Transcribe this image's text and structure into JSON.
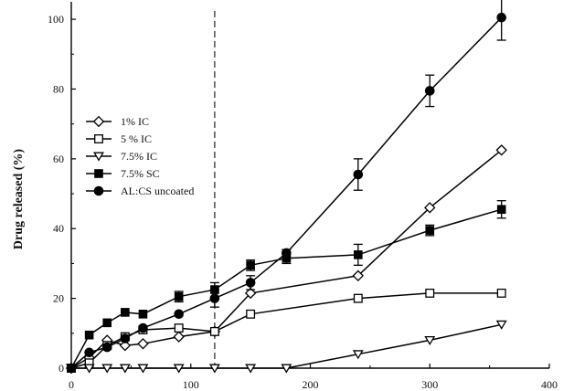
{
  "chart_data": {
    "type": "line",
    "title": "",
    "xlabel": "",
    "ylabel": "Drug released  (%)",
    "xlim": [
      0,
      400
    ],
    "ylim": [
      0,
      105
    ],
    "xticks": [
      0,
      100,
      200,
      300,
      400
    ],
    "yticks": [
      0,
      20,
      40,
      60,
      80,
      100
    ],
    "grid": false,
    "legend_position": "middle-left",
    "reference_line": {
      "x": 120,
      "style": "dashed"
    },
    "series": [
      {
        "name": "1% IC",
        "marker": "diamond-open",
        "x": [
          0,
          15,
          30,
          45,
          60,
          90,
          120,
          150,
          240,
          300,
          360
        ],
        "y": [
          0,
          3,
          8,
          6.5,
          7,
          9,
          10.5,
          21.5,
          26.5,
          46,
          62.5
        ]
      },
      {
        "name": "5 % IC",
        "marker": "square-open",
        "x": [
          0,
          15,
          30,
          45,
          60,
          90,
          120,
          150,
          240,
          300,
          360
        ],
        "y": [
          0,
          1.5,
          6.5,
          9,
          11,
          11.5,
          10.5,
          15.5,
          20,
          21.5,
          21.5
        ]
      },
      {
        "name": "7.5% IC",
        "marker": "triangle-down-open",
        "x": [
          0,
          15,
          30,
          45,
          60,
          90,
          120,
          150,
          180,
          240,
          300,
          360
        ],
        "y": [
          0,
          0,
          0,
          0,
          0,
          0,
          0,
          0,
          0,
          4,
          8,
          12.5
        ]
      },
      {
        "name": "7.5% SC",
        "marker": "square-filled",
        "x": [
          0,
          15,
          30,
          45,
          60,
          90,
          120,
          150,
          180,
          240,
          300,
          360
        ],
        "y": [
          0,
          9.5,
          13,
          16,
          15.5,
          20.5,
          22.5,
          29.5,
          31.5,
          32.5,
          39.5,
          45.5
        ],
        "err": [
          0,
          0,
          0,
          0,
          0,
          1.5,
          2,
          1.5,
          1.5,
          3,
          1.5,
          2.5
        ]
      },
      {
        "name": "AL:CS uncoated",
        "marker": "circle-filled",
        "x": [
          0,
          15,
          30,
          45,
          60,
          90,
          120,
          150,
          180,
          240,
          300,
          360
        ],
        "y": [
          0,
          4.5,
          6,
          8.5,
          11.5,
          15.5,
          20,
          24.5,
          33,
          55.5,
          79.5,
          100.5
        ],
        "err": [
          0,
          0,
          0,
          0,
          0,
          0,
          2.5,
          2,
          1,
          4.5,
          4.5,
          6.5
        ]
      }
    ]
  }
}
